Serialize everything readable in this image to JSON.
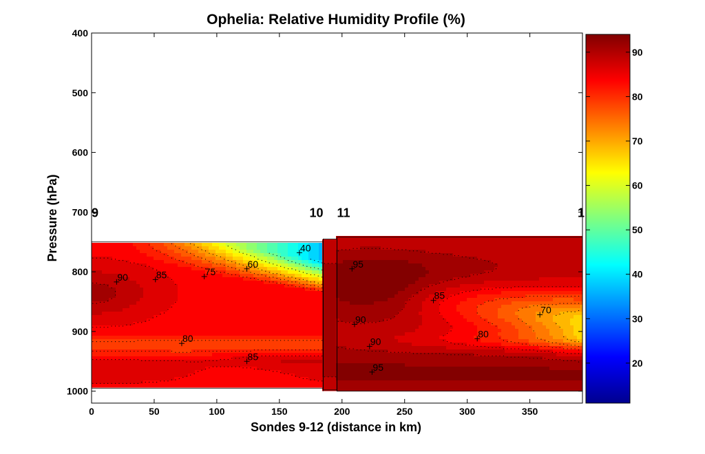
{
  "chart_data": {
    "type": "heatmap",
    "title": "Ophelia: Relative Humidity Profile (%)",
    "xlabel": "Sondes 9-12 (distance in km)",
    "ylabel": "Pressure (hPa)",
    "xlim": [
      0,
      392
    ],
    "ylim": [
      400,
      1020
    ],
    "y_reversed": true,
    "xticks": [
      "0",
      "50",
      "100",
      "150",
      "200",
      "250",
      "300",
      "350"
    ],
    "xtick_values": [
      0,
      50,
      100,
      150,
      200,
      250,
      300,
      350
    ],
    "yticks": [
      "400",
      "500",
      "600",
      "700",
      "800",
      "900",
      "1000"
    ],
    "ytick_values": [
      400,
      500,
      600,
      700,
      800,
      900,
      1000
    ],
    "colorbar": {
      "range": [
        11,
        94
      ],
      "ticks": [
        "20",
        "30",
        "40",
        "50",
        "60",
        "70",
        "80",
        "90"
      ],
      "tick_values": [
        20,
        30,
        40,
        50,
        60,
        70,
        80,
        90
      ],
      "colormap": "jet"
    },
    "sondes": [
      {
        "label": "9",
        "x_km": 0
      },
      {
        "label": "10",
        "x_km": 185
      },
      {
        "label": "11",
        "x_km": 196
      },
      {
        "label": "1",
        "x_km": 392
      }
    ],
    "data_boundaries": [
      {
        "x_start": 0,
        "x_end": 185,
        "p_top": 750,
        "p_bottom": 995
      },
      {
        "x_start": 185,
        "x_end": 196,
        "p_top": 745,
        "p_bottom": 998
      },
      {
        "x_start": 196,
        "x_end": 392,
        "p_top": 742,
        "p_bottom": 1000
      }
    ],
    "contour_labels": [
      {
        "text": "90",
        "x_km": 20,
        "p_hPa": 817
      },
      {
        "text": "85",
        "x_km": 51,
        "p_hPa": 813
      },
      {
        "text": "75",
        "x_km": 90,
        "p_hPa": 808
      },
      {
        "text": "60",
        "x_km": 124,
        "p_hPa": 795
      },
      {
        "text": "40",
        "x_km": 166,
        "p_hPa": 768
      },
      {
        "text": "95",
        "x_km": 208,
        "p_hPa": 795
      },
      {
        "text": "85",
        "x_km": 273,
        "p_hPa": 848
      },
      {
        "text": "90",
        "x_km": 210,
        "p_hPa": 888
      },
      {
        "text": "70",
        "x_km": 358,
        "p_hPa": 872
      },
      {
        "text": "80",
        "x_km": 72,
        "p_hPa": 920
      },
      {
        "text": "80",
        "x_km": 308,
        "p_hPa": 912
      },
      {
        "text": "90",
        "x_km": 222,
        "p_hPa": 925
      },
      {
        "text": "85",
        "x_km": 124,
        "p_hPa": 950
      },
      {
        "text": "95",
        "x_km": 224,
        "p_hPa": 968
      }
    ],
    "bands": [
      {
        "name": "left-top-moist",
        "region": "left",
        "rh_outer": 88,
        "rh_core": 92,
        "p_top": 750,
        "p_bottom": 870
      },
      {
        "name": "left-dry-wedge",
        "region": "left",
        "rh_min": 40,
        "p_top": 750,
        "p_bottom": 815
      },
      {
        "name": "left-mid",
        "region": "left",
        "rh": 84,
        "p_top": 815,
        "p_bottom": 905
      },
      {
        "name": "left-dry-band",
        "region": "left",
        "rh": 78,
        "p_top": 905,
        "p_bottom": 945
      },
      {
        "name": "left-lower",
        "region": "left",
        "rh": 86,
        "p_top": 945,
        "p_bottom": 995
      },
      {
        "name": "right-upper",
        "region": "right",
        "rh": 87,
        "p_top": 742,
        "p_bottom": 790
      },
      {
        "name": "right-moist-core",
        "region": "right",
        "rh": 93,
        "p_top": 790,
        "p_bottom": 900
      },
      {
        "name": "right-dry-tongue",
        "region": "right",
        "rh_min": 68,
        "p_top": 820,
        "p_bottom": 920
      },
      {
        "name": "right-lower",
        "region": "right",
        "rh": 93,
        "p_top": 925,
        "p_bottom": 1000
      }
    ]
  }
}
